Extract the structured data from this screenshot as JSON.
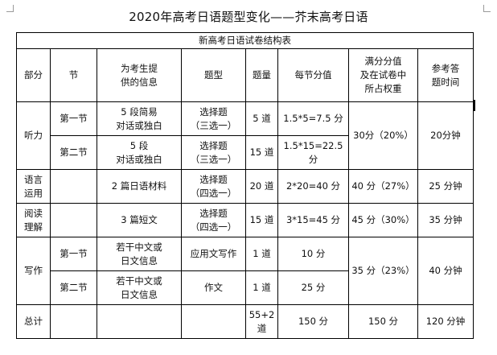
{
  "title": "2020年高考日语题型变化——芥末高考日语",
  "table_caption": "新高考日语试卷结构表",
  "headers": [
    "部分",
    "节",
    [
      "为考生提",
      "供的信息"
    ],
    "题型",
    "题量",
    "每节分值",
    [
      "满分分值",
      "及在试卷中",
      "所占权重"
    ],
    [
      "参考答",
      "题时间"
    ]
  ],
  "rows": {
    "listening": {
      "section": "听力",
      "merged_weight": "30分（20%）",
      "merged_time": "20分钟",
      "sub": [
        {
          "part": "第一节",
          "info": [
            "5 段简易",
            "对话或独白"
          ],
          "type": [
            "选择题",
            "（三选一）"
          ],
          "count": "5 道",
          "score": "1.5*5=7.5 分"
        },
        {
          "part": "第二节",
          "info": [
            "5 段",
            "对话或独白"
          ],
          "type": [
            "选择题",
            "（三选一）"
          ],
          "count": "15 道",
          "score": "1.5*15=22.5 分"
        }
      ]
    },
    "language": {
      "section": [
        "语言",
        "运用"
      ],
      "part": "",
      "info": "2 篇日语材料",
      "type": [
        "选择题",
        "（四选一）"
      ],
      "count": "20 道",
      "score": "2*20=40 分",
      "weight": "40 分（27%）",
      "time": "25 分钟"
    },
    "reading": {
      "section": [
        "阅读",
        "理解"
      ],
      "part": "",
      "info": "3 篇短文",
      "type": [
        "选择题",
        "（四选一）"
      ],
      "count": "15 道",
      "score": "3*15=45 分",
      "weight": "45 分（30%）",
      "time": "35 分钟"
    },
    "writing": {
      "section": "写作",
      "merged_weight": "35 分（23%）",
      "merged_time": "40 分钟",
      "sub": [
        {
          "part": "第一节",
          "info": [
            "若干中文或",
            "日文信息"
          ],
          "type": "应用文写作",
          "count": "1 道",
          "score": "10 分"
        },
        {
          "part": "第二节",
          "info": [
            "若干中文或",
            "日文信息"
          ],
          "type": "作文",
          "count": "1 道",
          "score": "25 分"
        }
      ]
    },
    "total": {
      "section": "总计",
      "part": "",
      "info": "",
      "type": "",
      "count": [
        "55+2",
        "道"
      ],
      "score": "150 分",
      "weight": "150 分",
      "time": "120 分钟"
    }
  }
}
